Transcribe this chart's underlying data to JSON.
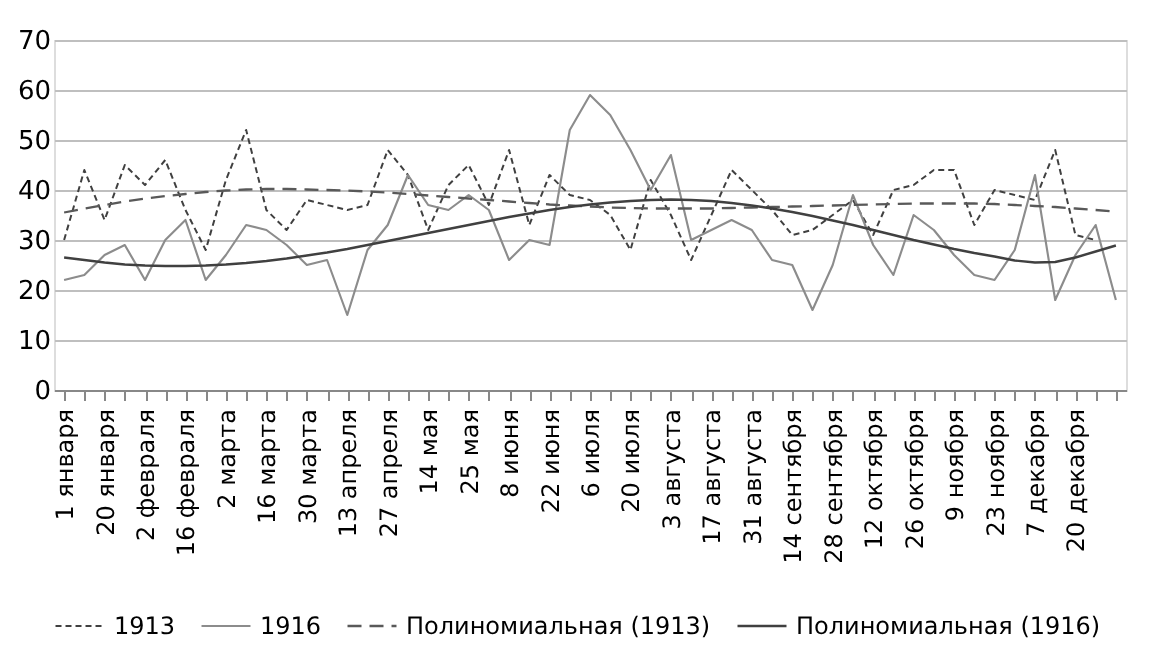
{
  "chart_data": {
    "type": "line",
    "categories": [
      "1 января",
      null,
      "20 января",
      null,
      "2 февраля",
      null,
      "16 февраля",
      null,
      "2 марта",
      null,
      "16 марта",
      null,
      "30 марта",
      null,
      "13 апреля",
      null,
      "27 апреля",
      null,
      "14 мая",
      null,
      "25 мая",
      null,
      "8 июня",
      null,
      "22 июня",
      null,
      "6 июля",
      null,
      "20 июля",
      null,
      "3 августа",
      null,
      "17 августа",
      null,
      "31 августа",
      null,
      "14 сентября",
      null,
      "28 сентября",
      null,
      "12 октября",
      null,
      "26 октября",
      null,
      "9 ноября",
      null,
      "23 ноября",
      null,
      "7 декабря",
      null,
      "20 декабря",
      null,
      null
    ],
    "series": [
      {
        "name": "1913",
        "color": "#404040",
        "line_style": "dotted",
        "values": [
          30,
          44,
          34,
          45,
          41,
          46,
          36,
          28,
          42,
          52,
          36,
          32,
          38,
          37,
          36,
          37,
          48,
          43,
          32,
          41,
          45,
          37,
          48,
          33,
          43,
          39,
          38,
          35,
          28,
          42,
          35,
          26,
          35,
          44,
          40,
          36,
          31,
          32,
          35,
          38,
          31,
          40,
          41,
          44,
          44,
          33,
          40,
          39,
          38,
          48,
          31,
          30,
          null
        ]
      },
      {
        "name": "1916",
        "color": "#8c8c8c",
        "line_style": "solid",
        "values": [
          22,
          23,
          27,
          29,
          22,
          30,
          34,
          22,
          27,
          33,
          32,
          29,
          25,
          26,
          15,
          28,
          33,
          43,
          37,
          36,
          39,
          36,
          26,
          30,
          29,
          52,
          59,
          55,
          48,
          40,
          47,
          30,
          32,
          34,
          32,
          26,
          25,
          16,
          25,
          39,
          29,
          23,
          35,
          32,
          27,
          23,
          22,
          28,
          43,
          18,
          27,
          33,
          18
        ]
      },
      {
        "name": "Полиномиальная (1913)",
        "color": "#595959",
        "line_style": "dashed",
        "values": [
          35.5,
          36.3,
          37,
          37.7,
          38.3,
          38.8,
          39.2,
          39.6,
          39.9,
          40.1,
          40.2,
          40.2,
          40.1,
          40,
          39.9,
          39.7,
          39.5,
          39.2,
          38.9,
          38.6,
          38.3,
          38,
          37.7,
          37.4,
          37.1,
          36.9,
          36.7,
          36.5,
          36.4,
          36.3,
          36.3,
          36.3,
          36.3,
          36.4,
          36.5,
          36.6,
          36.7,
          36.8,
          36.9,
          37,
          37.1,
          37.2,
          37.3,
          37.3,
          37.3,
          37.3,
          37.2,
          37,
          36.8,
          36.6,
          36.3,
          36,
          35.7
        ]
      },
      {
        "name": "Полиномиальная (1916)",
        "color": "#404040",
        "line_style": "solid",
        "values": [
          26.5,
          26,
          25.5,
          25.1,
          24.9,
          24.8,
          24.8,
          24.9,
          25.1,
          25.4,
          25.8,
          26.3,
          26.9,
          27.5,
          28.2,
          29,
          29.8,
          30.6,
          31.4,
          32.2,
          33,
          33.8,
          34.6,
          35.3,
          36,
          36.6,
          37.1,
          37.5,
          37.8,
          38,
          38.1,
          38,
          37.8,
          37.4,
          36.9,
          36.3,
          35.6,
          34.8,
          33.9,
          33,
          32,
          31,
          30,
          29.1,
          28.2,
          27.4,
          26.7,
          25.9,
          25.5,
          25.6,
          26.5,
          27.7,
          28.9
        ]
      }
    ],
    "ylim": [
      0,
      70
    ],
    "yticks": [
      0,
      10,
      20,
      30,
      40,
      50,
      60,
      70
    ],
    "grid": "y",
    "legend": "bottom",
    "marker": "none"
  }
}
